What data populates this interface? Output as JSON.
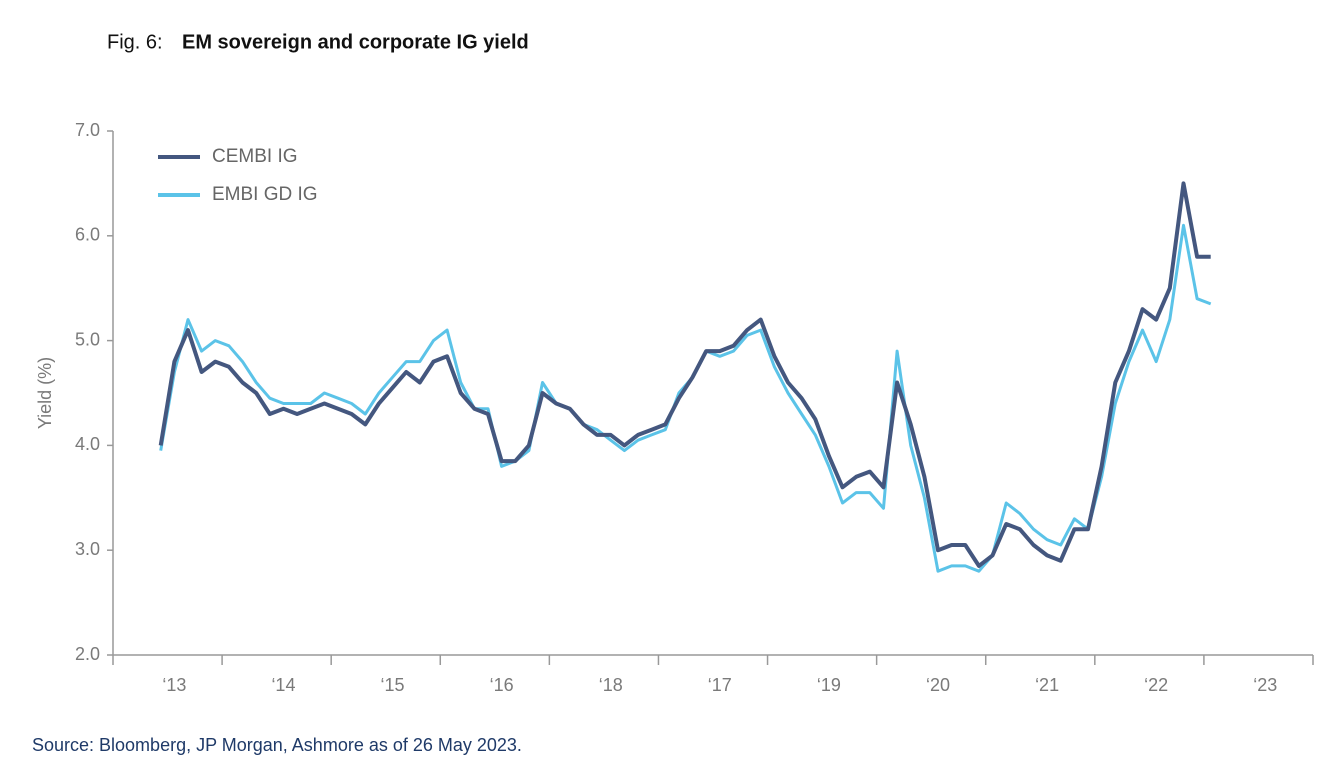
{
  "chart_data": {
    "type": "line",
    "figure_label": "Fig. 6:",
    "title": "EM sovereign and corporate IG yield",
    "y_label": "Yield (%)",
    "source": "Source: Bloomberg, JP Morgan, Ashmore as of 26 May 2023.",
    "categories": [
      null,
      null,
      null,
      null,
      "‘13",
      null,
      null,
      null,
      null,
      null,
      null,
      null,
      "‘14",
      null,
      null,
      null,
      null,
      null,
      null,
      null,
      "‘15",
      null,
      null,
      null,
      null,
      null,
      null,
      null,
      "‘16",
      null,
      null,
      null,
      null,
      null,
      null,
      null,
      "‘18",
      null,
      null,
      null,
      null,
      null,
      null,
      null,
      "‘17",
      null,
      null,
      null,
      null,
      null,
      null,
      null,
      "‘19",
      null,
      null,
      null,
      null,
      null,
      null,
      null,
      "‘20",
      null,
      null,
      null,
      null,
      null,
      null,
      null,
      "‘21",
      null,
      null,
      null,
      null,
      null,
      null,
      null,
      "‘22",
      null,
      null,
      null,
      null,
      null,
      null,
      null,
      "‘23",
      null,
      null,
      null
    ],
    "series": [
      {
        "name": "CEMBI IG",
        "color": "#44577f",
        "values": [
          null,
          null,
          null,
          4.0,
          4.8,
          5.1,
          4.7,
          4.8,
          4.75,
          4.6,
          4.5,
          4.3,
          4.35,
          4.3,
          4.35,
          4.4,
          4.35,
          4.3,
          4.2,
          4.4,
          4.55,
          4.7,
          4.6,
          4.8,
          4.85,
          4.5,
          4.35,
          4.3,
          3.85,
          3.85,
          4.0,
          4.5,
          4.4,
          4.35,
          4.2,
          4.1,
          4.1,
          4.0,
          4.1,
          4.15,
          4.2,
          4.45,
          4.65,
          4.9,
          4.9,
          4.95,
          5.1,
          5.2,
          4.85,
          4.6,
          4.45,
          4.25,
          3.9,
          3.6,
          3.7,
          3.75,
          3.6,
          4.6,
          4.2,
          3.7,
          3.0,
          3.05,
          3.05,
          2.85,
          2.95,
          3.25,
          3.2,
          3.05,
          2.95,
          2.9,
          3.2,
          3.2,
          3.8,
          4.6,
          4.9,
          5.3,
          5.2,
          5.5,
          6.5,
          5.8,
          5.8,
          null,
          null,
          null,
          null,
          null,
          null,
          null
        ]
      },
      {
        "name": "EMBI GD IG",
        "color": "#5bc3e8",
        "values": [
          null,
          null,
          null,
          3.95,
          4.7,
          5.2,
          4.9,
          5.0,
          4.95,
          4.8,
          4.6,
          4.45,
          4.4,
          4.4,
          4.4,
          4.5,
          4.45,
          4.4,
          4.3,
          4.5,
          4.65,
          4.8,
          4.8,
          5.0,
          5.1,
          4.6,
          4.35,
          4.35,
          3.8,
          3.85,
          3.95,
          4.6,
          4.4,
          4.35,
          4.2,
          4.15,
          4.05,
          3.95,
          4.05,
          4.1,
          4.15,
          4.5,
          4.65,
          4.9,
          4.85,
          4.9,
          5.05,
          5.1,
          4.75,
          4.5,
          4.3,
          4.1,
          3.8,
          3.45,
          3.55,
          3.55,
          3.4,
          4.9,
          4.0,
          3.5,
          2.8,
          2.85,
          2.85,
          2.8,
          2.95,
          3.45,
          3.35,
          3.2,
          3.1,
          3.05,
          3.3,
          3.2,
          3.7,
          4.4,
          4.8,
          5.1,
          4.8,
          5.2,
          6.1,
          5.4,
          5.35,
          null,
          null,
          null,
          null,
          null,
          null,
          null
        ]
      }
    ],
    "ylim": [
      2.0,
      7.0
    ],
    "yticks": [
      {
        "value": 2,
        "label": "2.0"
      },
      {
        "value": 3,
        "label": "3.0"
      },
      {
        "value": 4,
        "label": "4.0"
      },
      {
        "value": 5,
        "label": "5.0"
      },
      {
        "value": 6,
        "label": "6.0"
      },
      {
        "value": 7,
        "label": "7.0"
      }
    ],
    "legend": "top-left"
  }
}
